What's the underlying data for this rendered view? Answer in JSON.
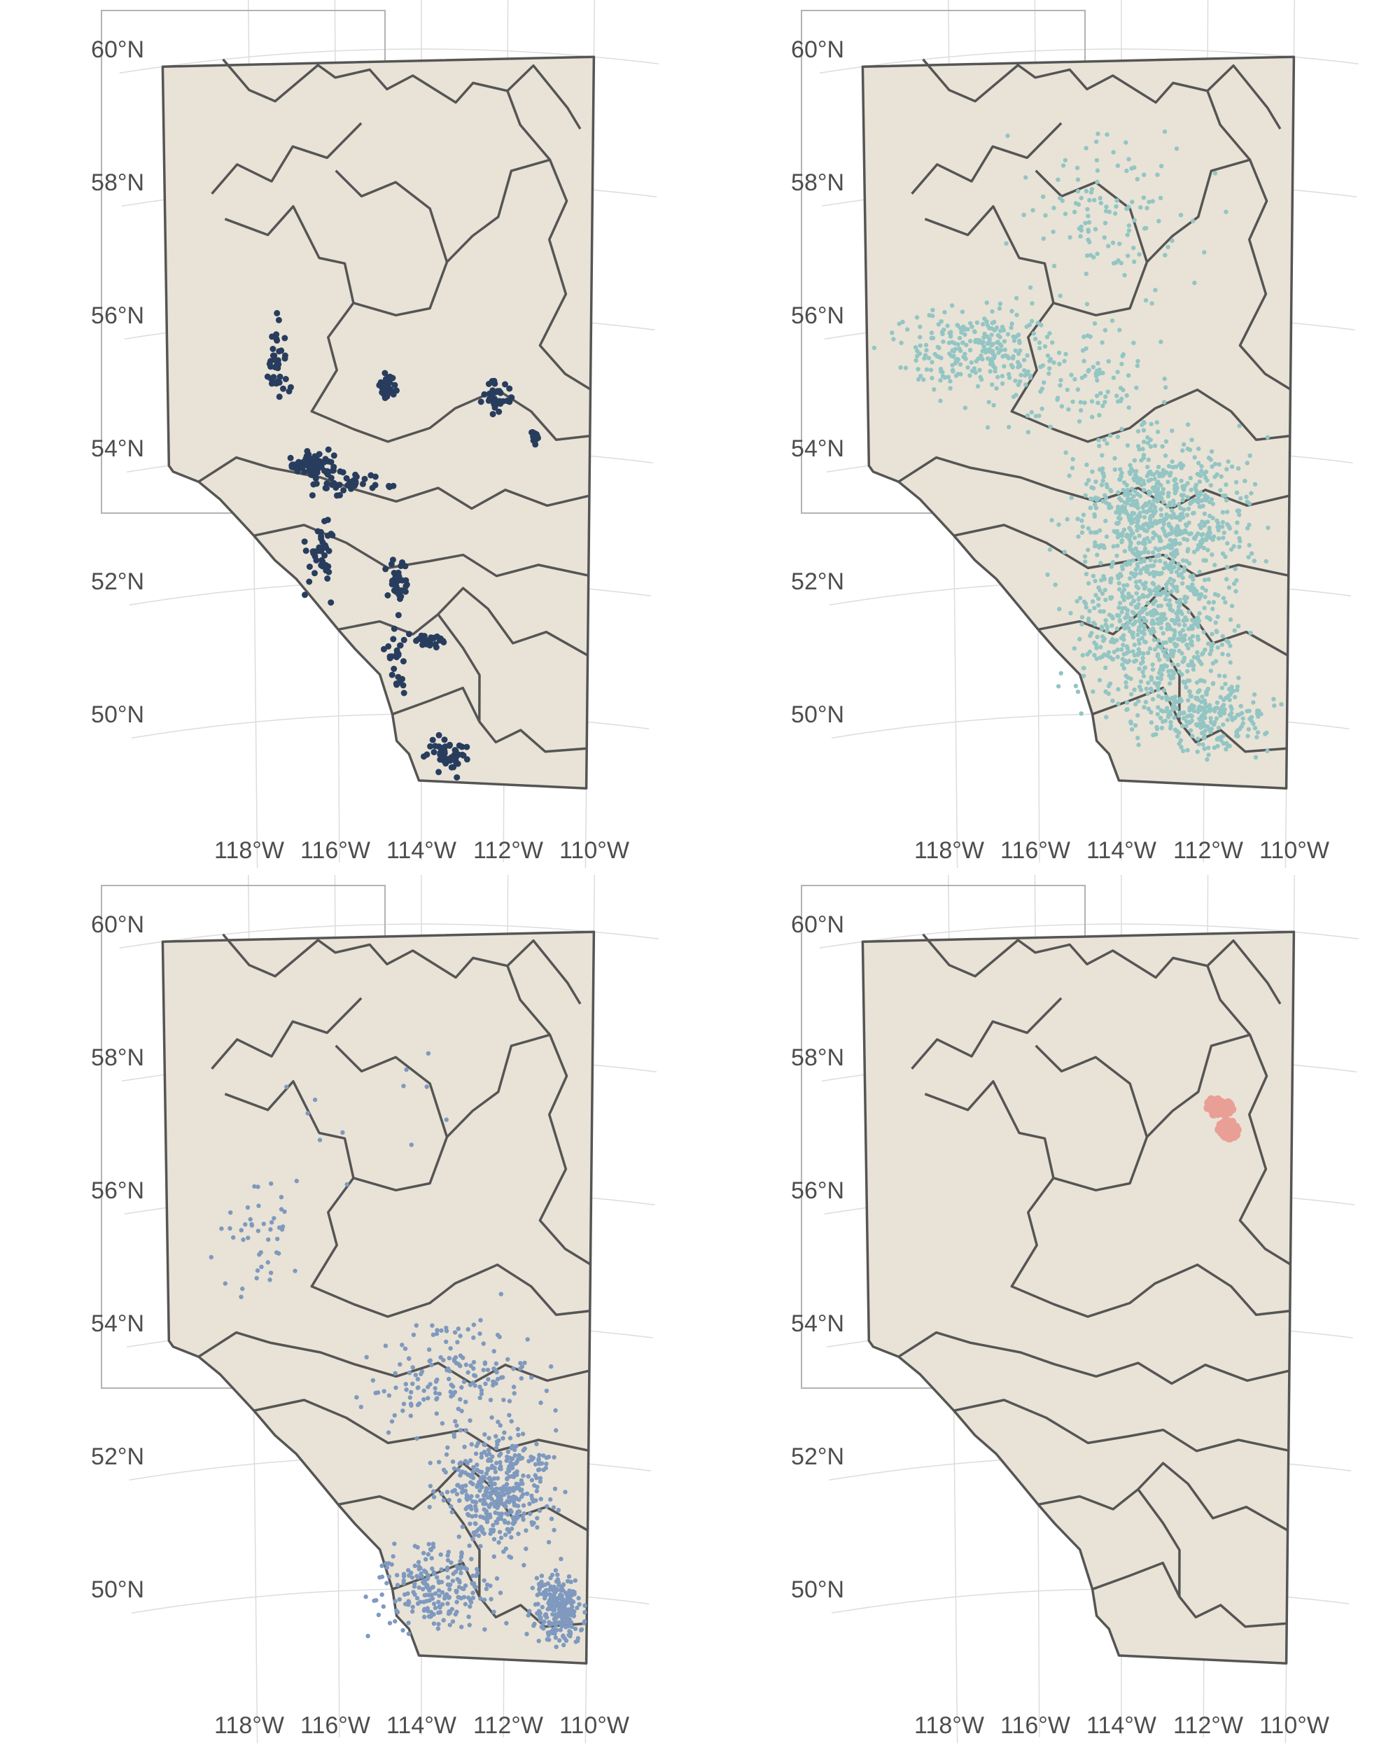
{
  "chart_data": [
    {
      "type": "scatter",
      "panel": "top-left",
      "point_color": "#283d5e",
      "lat_ticks": [
        "60°N",
        "58°N",
        "56°N",
        "54°N",
        "52°N",
        "50°N"
      ],
      "lon_ticks": [
        "118°W",
        "116°W",
        "114°W",
        "112°W",
        "110°W"
      ],
      "pattern": "linear",
      "clusters": [
        {
          "lon": -116.6,
          "lat": 53.8,
          "n": 90,
          "spread": [
            0.5,
            0.15
          ]
        },
        {
          "lon": -114.8,
          "lat": 54.9,
          "n": 40,
          "spread": [
            0.2,
            0.2
          ]
        },
        {
          "lon": -117.4,
          "lat": 55.3,
          "n": 40,
          "spread": [
            0.3,
            0.6
          ]
        },
        {
          "lon": -112.2,
          "lat": 54.8,
          "n": 35,
          "spread": [
            0.4,
            0.3
          ]
        },
        {
          "lon": -111.3,
          "lat": 54.2,
          "n": 15,
          "spread": [
            0.1,
            0.1
          ]
        },
        {
          "lon": -115.6,
          "lat": 53.5,
          "n": 40,
          "spread": [
            1.0,
            0.2
          ]
        },
        {
          "lon": -116.4,
          "lat": 52.5,
          "n": 40,
          "spread": [
            0.5,
            0.6
          ]
        },
        {
          "lon": -114.6,
          "lat": 52.0,
          "n": 35,
          "spread": [
            0.3,
            0.3
          ]
        },
        {
          "lon": -113.8,
          "lat": 51.1,
          "n": 25,
          "spread": [
            0.3,
            0.1
          ]
        },
        {
          "lon": -113.4,
          "lat": 49.4,
          "n": 45,
          "spread": [
            0.5,
            0.25
          ]
        },
        {
          "lon": -114.6,
          "lat": 50.8,
          "n": 30,
          "spread": [
            0.3,
            0.5
          ]
        }
      ]
    },
    {
      "type": "scatter",
      "panel": "top-right",
      "point_color": "#93c5c4",
      "lat_ticks": [
        "60°N",
        "58°N",
        "56°N",
        "54°N",
        "52°N",
        "50°N"
      ],
      "lon_ticks": [
        "118°W",
        "116°W",
        "114°W",
        "112°W",
        "110°W"
      ],
      "pattern": "dense",
      "clusters": [
        {
          "lon": -113.0,
          "lat": 53.0,
          "n": 700,
          "spread": [
            2.0,
            1.2
          ]
        },
        {
          "lon": -113.2,
          "lat": 51.3,
          "n": 600,
          "spread": [
            1.8,
            1.2
          ]
        },
        {
          "lon": -112.0,
          "lat": 50.0,
          "n": 250,
          "spread": [
            1.6,
            0.6
          ]
        },
        {
          "lon": -117.5,
          "lat": 55.6,
          "n": 260,
          "spread": [
            1.6,
            0.7
          ]
        },
        {
          "lon": -114.2,
          "lat": 57.6,
          "n": 120,
          "spread": [
            2.0,
            1.2
          ]
        },
        {
          "lon": -115.0,
          "lat": 55.0,
          "n": 120,
          "spread": [
            2.0,
            0.8
          ]
        }
      ]
    },
    {
      "type": "scatter",
      "panel": "bottom-left",
      "point_color": "#7f99bf",
      "lat_ticks": [
        "60°N",
        "58°N",
        "56°N",
        "54°N",
        "52°N",
        "50°N"
      ],
      "lon_ticks": [
        "118°W",
        "116°W",
        "114°W",
        "112°W",
        "110°W"
      ],
      "pattern": "scattered",
      "clusters": [
        {
          "lon": -112.2,
          "lat": 51.5,
          "n": 420,
          "spread": [
            1.3,
            0.9
          ]
        },
        {
          "lon": -110.7,
          "lat": 49.8,
          "n": 260,
          "spread": [
            0.6,
            0.5
          ]
        },
        {
          "lon": -113.6,
          "lat": 50.0,
          "n": 220,
          "spread": [
            1.6,
            0.6
          ]
        },
        {
          "lon": -113.2,
          "lat": 53.2,
          "n": 170,
          "spread": [
            2.0,
            0.9
          ]
        },
        {
          "lon": -117.8,
          "lat": 55.4,
          "n": 45,
          "spread": [
            1.2,
            0.7
          ]
        },
        {
          "lon": -115.2,
          "lat": 57.0,
          "n": 12,
          "spread": [
            2.2,
            1.2
          ]
        }
      ]
    },
    {
      "type": "scatter",
      "panel": "bottom-right",
      "point_color": "#e99f95",
      "lat_ticks": [
        "60°N",
        "58°N",
        "56°N",
        "54°N",
        "52°N",
        "50°N"
      ],
      "lon_ticks": [
        "118°W",
        "116°W",
        "114°W",
        "112°W",
        "110°W"
      ],
      "pattern": "compact",
      "clusters": [
        {
          "lon": -111.7,
          "lat": 57.3,
          "n": 70,
          "spread": [
            0.3,
            0.12
          ]
        },
        {
          "lon": -111.5,
          "lat": 56.95,
          "n": 60,
          "spread": [
            0.22,
            0.12
          ]
        }
      ]
    }
  ]
}
